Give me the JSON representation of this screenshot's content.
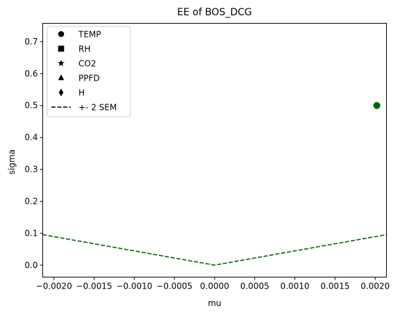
{
  "chart_data": {
    "type": "scatter",
    "title": "EE of BOS_DCG",
    "xlabel": "mu",
    "ylabel": "sigma",
    "xlim": [
      -0.00214,
      0.00214
    ],
    "ylim": [
      -0.0375,
      0.7575
    ],
    "grid": false,
    "legend_position": "top-left",
    "xticks": [
      -0.002,
      -0.0015,
      -0.001,
      -0.0005,
      0.0,
      0.0005,
      0.001,
      0.0015,
      0.002
    ],
    "xtick_labels": [
      "−0.0020",
      "−0.0015",
      "−0.0010",
      "−0.0005",
      "0.0000",
      "0.0005",
      "0.0010",
      "0.0015",
      "0.0020"
    ],
    "yticks": [
      0.0,
      0.1,
      0.2,
      0.3,
      0.4,
      0.5,
      0.6,
      0.7
    ],
    "ytick_labels": [
      "0.0",
      "0.1",
      "0.2",
      "0.3",
      "0.4",
      "0.5",
      "0.6",
      "0.7"
    ],
    "series": [
      {
        "name": "TEMP",
        "marker": "circle",
        "color": "#006400",
        "x": [
          0.00202
        ],
        "y": [
          0.5
        ]
      }
    ],
    "sem_line": {
      "name": "+- 2 SEM",
      "color": "#006400",
      "dash": "dashed",
      "x": [
        -0.00214,
        0.0,
        0.00214
      ],
      "y": [
        0.0955,
        0.0,
        0.0955
      ]
    },
    "legend": [
      {
        "label": "TEMP",
        "marker": "circle"
      },
      {
        "label": "RH",
        "marker": "square"
      },
      {
        "label": "CO2",
        "marker": "star"
      },
      {
        "label": "PPFD",
        "marker": "triangle"
      },
      {
        "label": "H",
        "marker": "diamond"
      },
      {
        "label": "+- 2 SEM",
        "marker": "dashed-line"
      }
    ]
  }
}
